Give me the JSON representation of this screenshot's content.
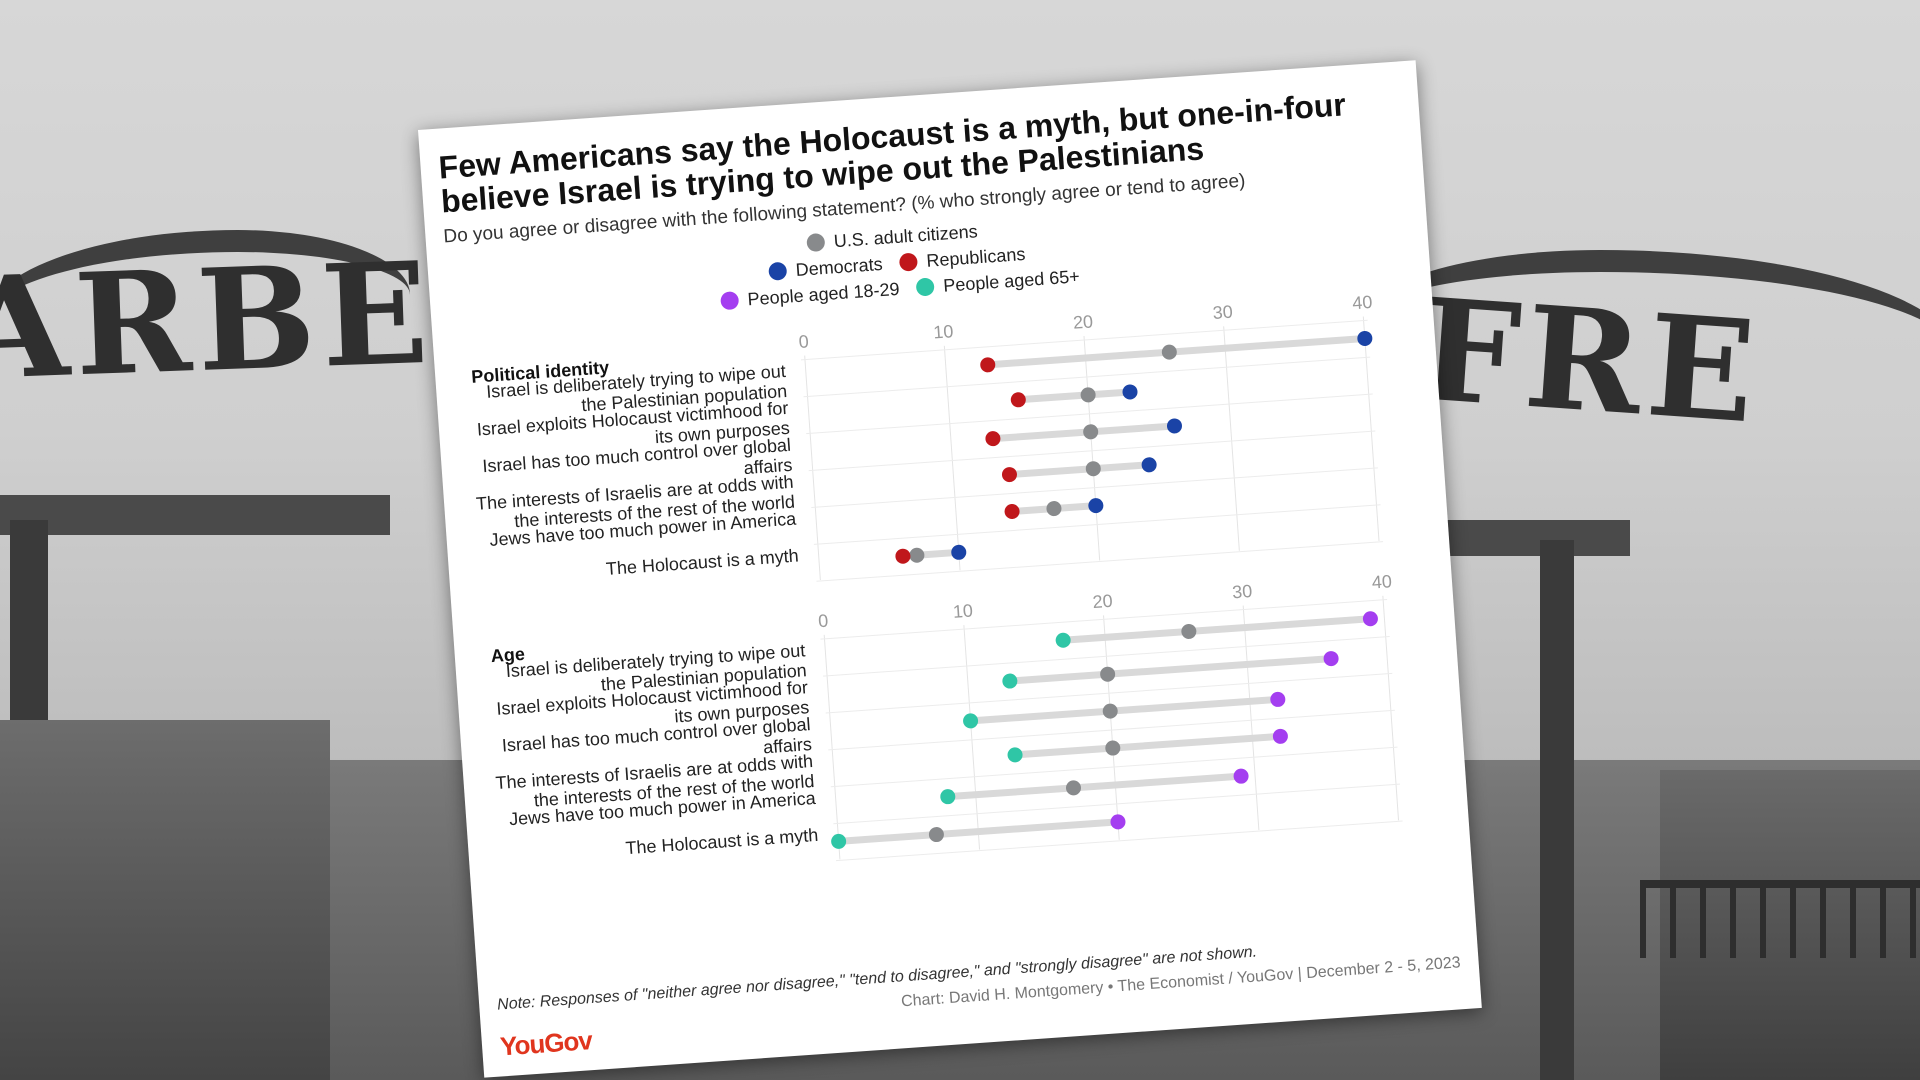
{
  "background": {
    "sign_left": "ARBE",
    "sign_right": "FRE"
  },
  "card": {
    "title": "Few Americans say the Holocaust is a myth, but one-in-four believe Israel is trying to wipe out the Palestinians",
    "subtitle": "Do you agree or disagree with the following statement? (% who strongly agree or tend to agree)",
    "legend": [
      {
        "label": "U.S. adult citizens",
        "color": "#888a8c"
      },
      {
        "label": "Democrats",
        "color": "#1a43a6"
      },
      {
        "label": "Republicans",
        "color": "#c0171b"
      },
      {
        "label": "People aged 18-29",
        "color": "#a43ef0"
      },
      {
        "label": "People aged 65+",
        "color": "#2fc6a6"
      }
    ],
    "note": "Note: Responses of \"neither agree nor disagree,\" \"tend to disagree,\" and \"strongly disagree\" are not shown.",
    "credit": "Chart: David H. Montgomery • The Economist / YouGov | December 2 - 5, 2023",
    "logo": "YouGov"
  },
  "chart_data": [
    {
      "type": "dot",
      "title": "Political identity",
      "xlim": [
        0,
        40
      ],
      "xticks": [
        "0",
        "10",
        "20",
        "30",
        "40"
      ],
      "categories": [
        "Israel is deliberately trying to wipe out the Palestinian population",
        "Israel exploits Holocaust victimhood for its own purposes",
        "Israel has too much control over global affairs",
        "The interests of Israelis are at odds with the interests of the rest of the world",
        "Jews have too much power in America",
        "The Holocaust is a myth"
      ],
      "series": [
        {
          "name": "U.S. adult citizens",
          "color": "#888a8c",
          "values": [
            26,
            20,
            20,
            20,
            17,
            7
          ]
        },
        {
          "name": "Democrats",
          "color": "#1a43a6",
          "values": [
            40,
            23,
            26,
            24,
            20,
            10
          ]
        },
        {
          "name": "Republicans",
          "color": "#c0171b",
          "values": [
            13,
            15,
            13,
            14,
            14,
            6
          ]
        }
      ]
    },
    {
      "type": "dot",
      "title": "Age",
      "xlim": [
        0,
        40
      ],
      "xticks": [
        "0",
        "10",
        "20",
        "30",
        "40"
      ],
      "categories": [
        "Israel is deliberately trying to wipe out the Palestinian population",
        "Israel exploits Holocaust victimhood for its own purposes",
        "Israel has too much control over global affairs",
        "The interests of Israelis are at odds with the interests of the rest of the world",
        "Jews have too much power in America",
        "The Holocaust is a myth"
      ],
      "series": [
        {
          "name": "U.S. adult citizens",
          "color": "#888a8c",
          "values": [
            26,
            20,
            20,
            20,
            17,
            7
          ]
        },
        {
          "name": "People aged 18-29",
          "color": "#a43ef0",
          "values": [
            39,
            36,
            32,
            32,
            29,
            20
          ]
        },
        {
          "name": "People aged 65+",
          "color": "#2fc6a6",
          "values": [
            17,
            13,
            10,
            13,
            8,
            0
          ]
        }
      ]
    }
  ]
}
